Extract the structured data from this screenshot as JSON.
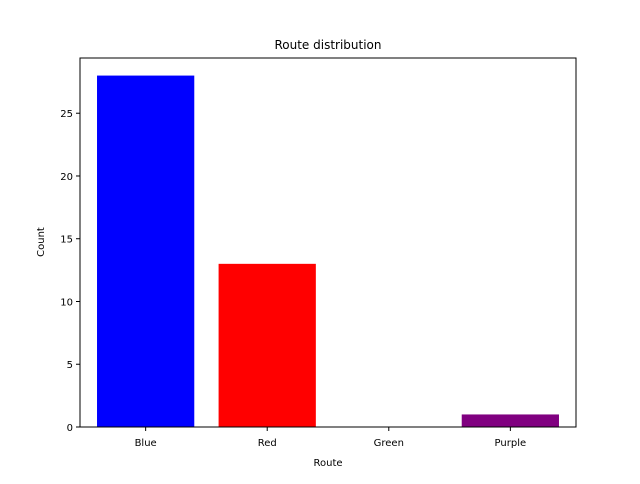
{
  "chart_data": {
    "type": "bar",
    "title": "Route distribution",
    "xlabel": "Route",
    "ylabel": "Count",
    "categories": [
      "Blue",
      "Red",
      "Green",
      "Purple"
    ],
    "values": [
      28,
      13,
      0,
      1
    ],
    "colors": [
      "#0000ff",
      "#ff0000",
      "#008000",
      "#800080"
    ],
    "ylim": [
      0,
      29.4
    ],
    "yticks": [
      0,
      5,
      10,
      15,
      20,
      25
    ],
    "grid": false,
    "legend": "none"
  }
}
